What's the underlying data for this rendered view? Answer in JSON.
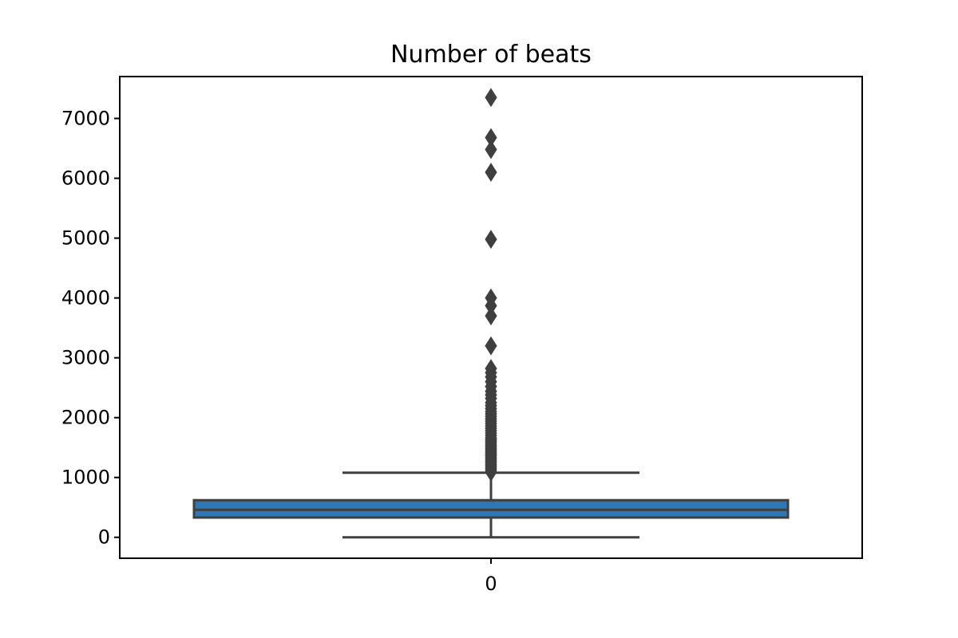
{
  "chart_data": {
    "type": "box",
    "title": "Number of beats",
    "xlabel": "",
    "ylabel": "",
    "categories": [
      "0"
    ],
    "ylim": [
      -350,
      7700
    ],
    "yticks": [
      0,
      1000,
      2000,
      3000,
      4000,
      5000,
      6000,
      7000
    ],
    "grid": false,
    "colors": {
      "box": "#2f77b4",
      "line": "#3f3f3f"
    },
    "box": {
      "whisker_low": 0,
      "q1": 330,
      "median": 460,
      "q3": 620,
      "whisker_high": 1080
    },
    "outliers": [
      1090,
      1120,
      1150,
      1180,
      1210,
      1240,
      1270,
      1300,
      1330,
      1360,
      1390,
      1420,
      1450,
      1480,
      1510,
      1540,
      1570,
      1600,
      1630,
      1660,
      1700,
      1740,
      1780,
      1820,
      1860,
      1900,
      1940,
      1980,
      2020,
      2060,
      2100,
      2150,
      2200,
      2250,
      2320,
      2380,
      2440,
      2520,
      2600,
      2680,
      2750,
      2820,
      3200,
      3700,
      3870,
      4000,
      4980,
      6100,
      6480,
      6680,
      7350
    ]
  }
}
